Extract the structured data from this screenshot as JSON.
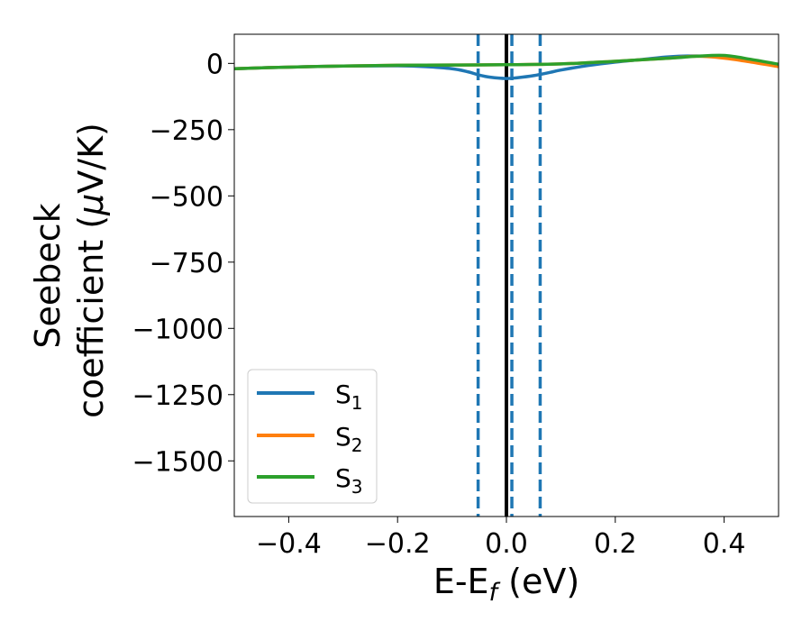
{
  "chart_data": {
    "type": "line",
    "xlabel": "E-E",
    "xlabel_sub": "f",
    "xlabel_unit": " (eV)",
    "ylabel_line1": "Seebeck",
    "ylabel_line2_prefix": "coefficient  (",
    "ylabel_mu": "μ",
    "ylabel_line2_suffix": "V/K)",
    "xlim": [
      -0.5,
      0.5
    ],
    "ylim": [
      -1710,
      110
    ],
    "xticks": [
      -0.4,
      -0.2,
      0.0,
      0.2,
      0.4
    ],
    "xtick_labels": [
      "−0.4",
      "−0.2",
      "0.0",
      "0.2",
      "0.4"
    ],
    "yticks": [
      0,
      -250,
      -500,
      -750,
      -1000,
      -1250,
      -1500
    ],
    "ytick_labels": [
      "0",
      "−250",
      "−500",
      "−750",
      "−1000",
      "−1250",
      "−1500"
    ],
    "legend_position": "lower-left",
    "vertical_lines": [
      {
        "x": -0.052,
        "style": "dashed",
        "color": "#1f77b4"
      },
      {
        "x": 0.0,
        "style": "solid",
        "color": "#000000"
      },
      {
        "x": 0.01,
        "style": "dashed",
        "color": "#1f77b4"
      },
      {
        "x": 0.062,
        "style": "dashed",
        "color": "#1f77b4"
      }
    ],
    "series": [
      {
        "name_base": "S",
        "name_sub": "1",
        "color": "#1f77b4",
        "x": [
          -0.5,
          -0.4,
          -0.3,
          -0.2,
          -0.15,
          -0.1,
          -0.07,
          -0.05,
          -0.03,
          0.0,
          0.02,
          0.05,
          0.08,
          0.1,
          0.15,
          0.2,
          0.25,
          0.3,
          0.35,
          0.4,
          0.45,
          0.5
        ],
        "y": [
          -20,
          -14,
          -10,
          -9,
          -12,
          -20,
          -32,
          -44,
          -52,
          -57,
          -54,
          -46,
          -34,
          -25,
          -8,
          5,
          15,
          25,
          28,
          22,
          10,
          -5
        ]
      },
      {
        "name_base": "S",
        "name_sub": "2",
        "color": "#ff7f0e",
        "x": [
          -0.5,
          -0.4,
          -0.3,
          -0.2,
          -0.1,
          0.0,
          0.1,
          0.2,
          0.3,
          0.35,
          0.4,
          0.45,
          0.5
        ],
        "y": [
          -20,
          -14,
          -10,
          -7,
          -6,
          -5,
          -2,
          8,
          20,
          27,
          20,
          5,
          -12
        ]
      },
      {
        "name_base": "S",
        "name_sub": "3",
        "color": "#2ca02c",
        "x": [
          -0.5,
          -0.4,
          -0.3,
          -0.2,
          -0.1,
          0.0,
          0.1,
          0.2,
          0.3,
          0.35,
          0.4,
          0.45,
          0.5
        ],
        "y": [
          -20,
          -14,
          -10,
          -7,
          -6,
          -5,
          -2,
          8,
          20,
          27,
          30,
          15,
          -3
        ]
      }
    ]
  }
}
